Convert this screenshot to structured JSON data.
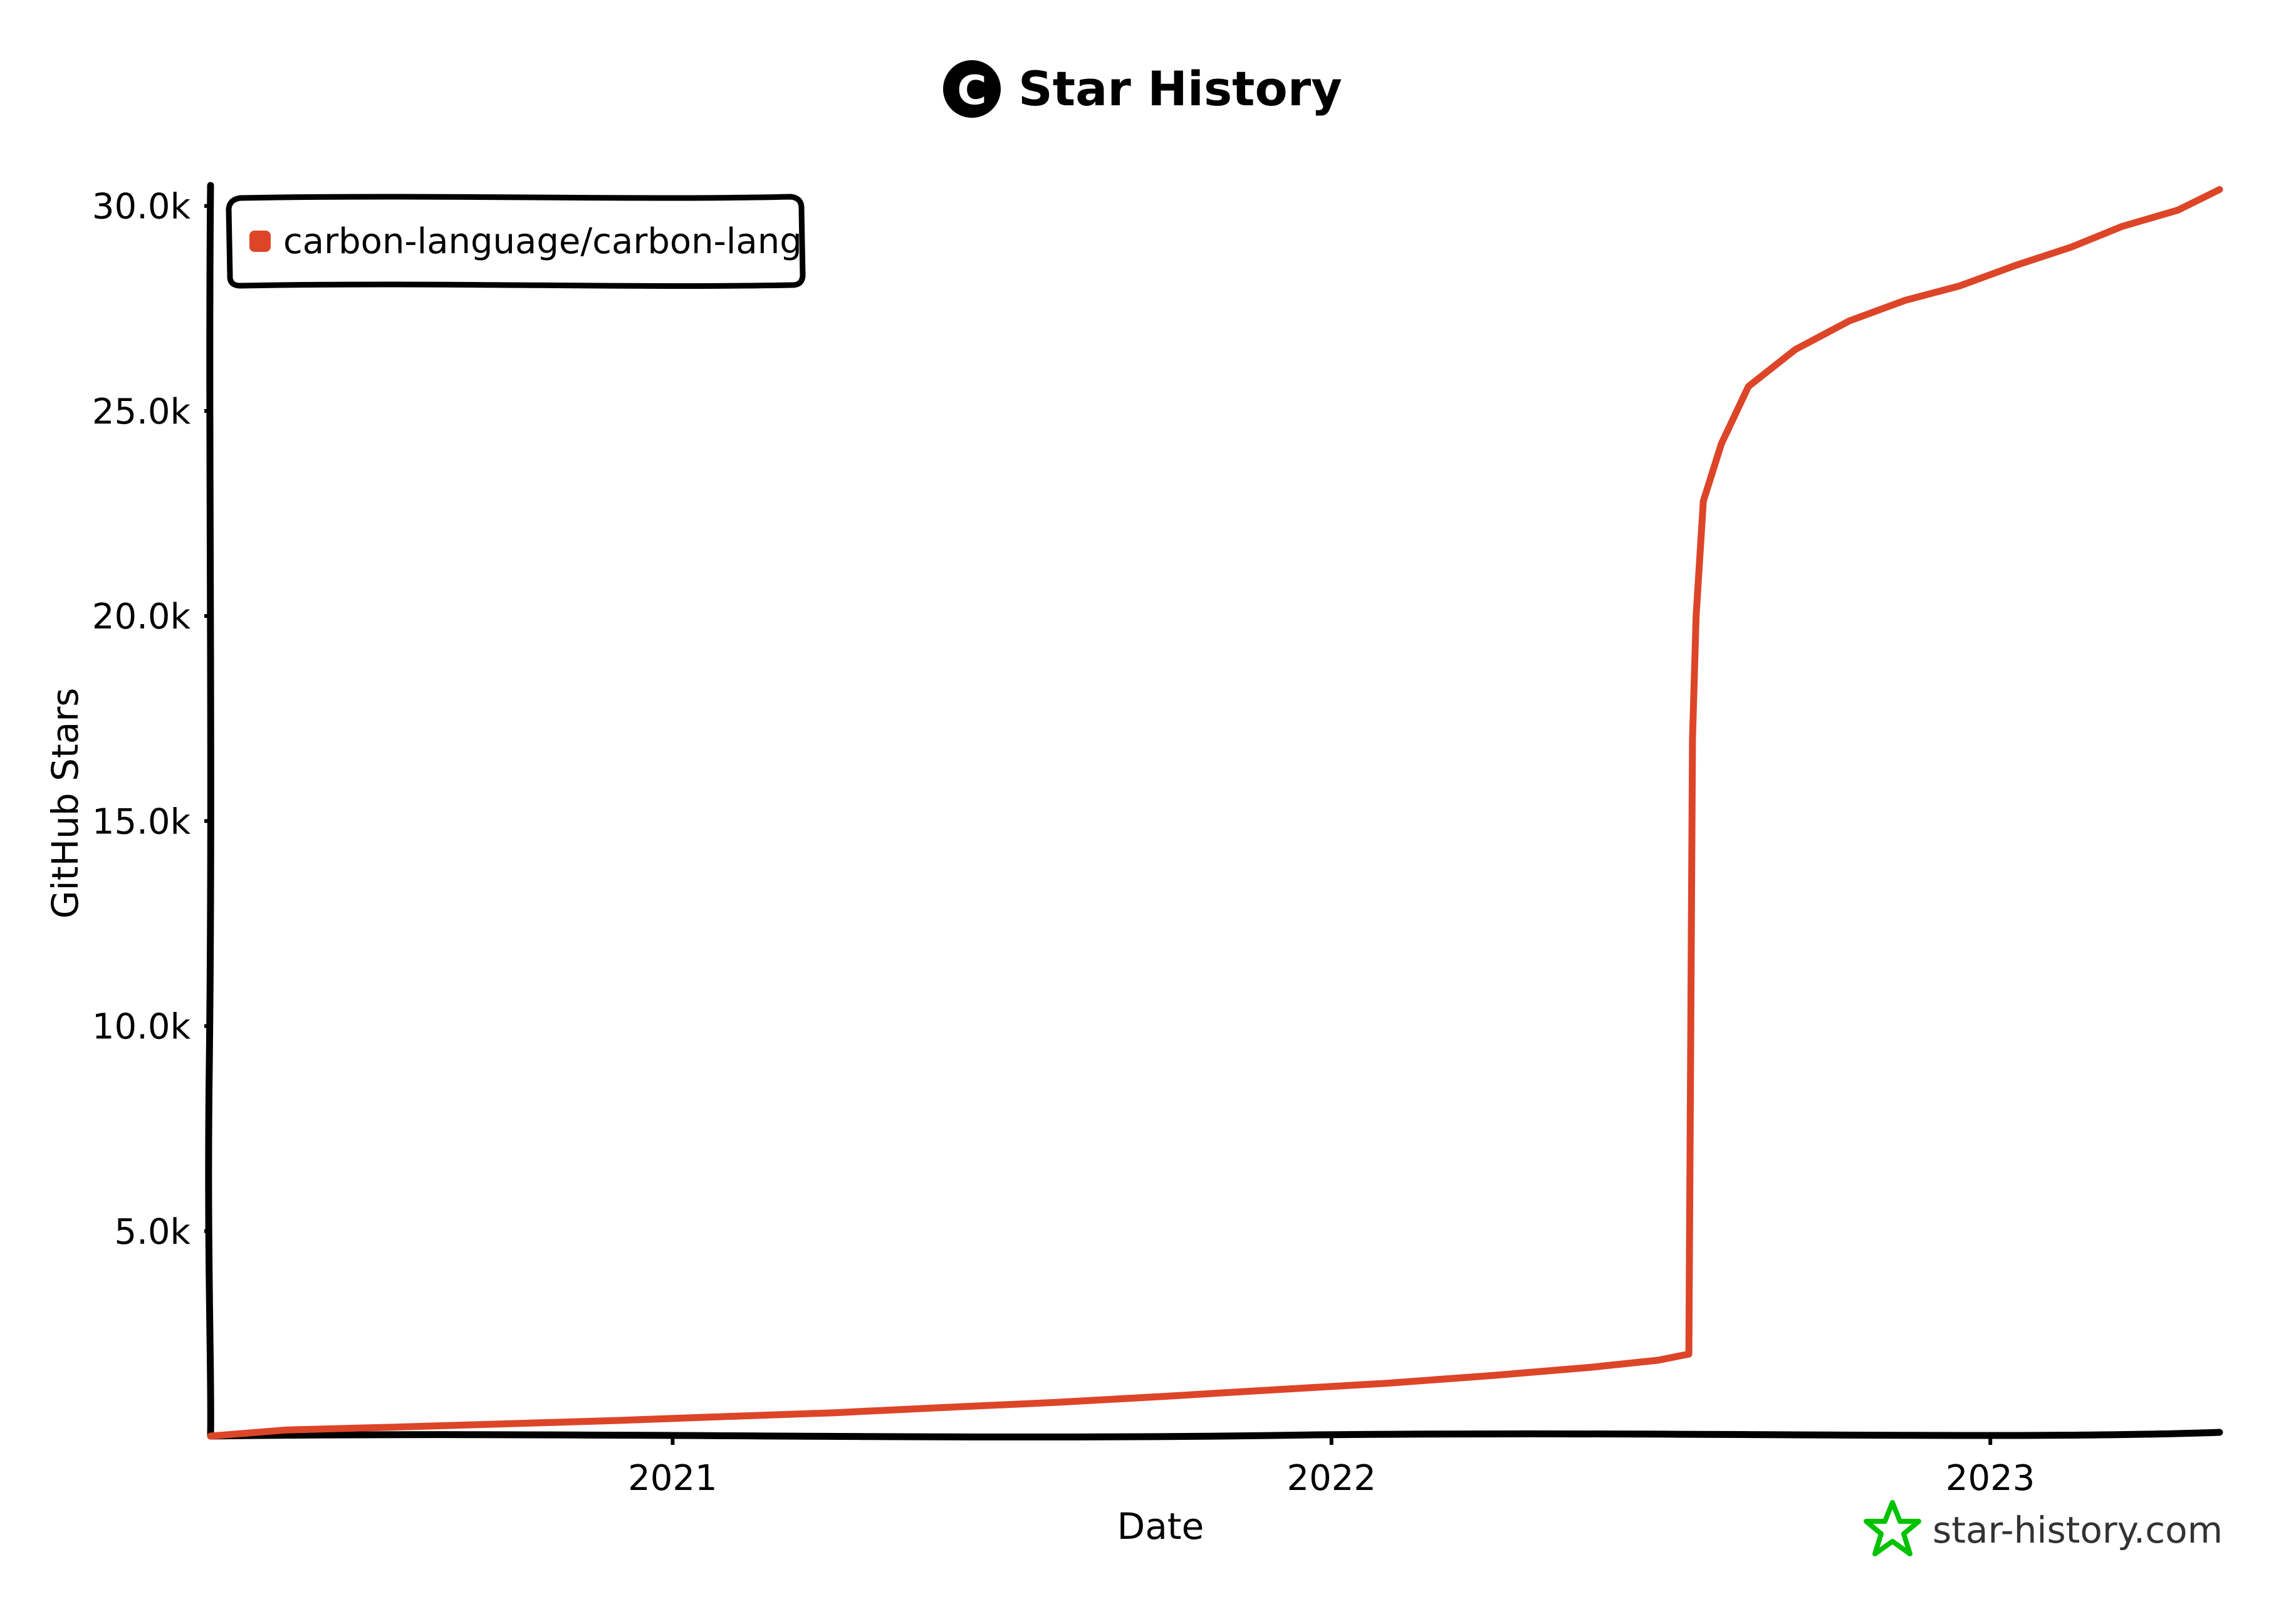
{
  "chart_data": {
    "type": "line",
    "title": "Star History",
    "title_icon_letter": "C",
    "xlabel": "Date",
    "ylabel": "GitHub Stars",
    "x_tick_labels": [
      "2021",
      "2022",
      "2023"
    ],
    "x_ticks": [
      "2021-01-01",
      "2022-01-01",
      "2023-01-01"
    ],
    "xlim": [
      "2020-04-20",
      "2023-05-08"
    ],
    "y_tick_labels": [
      "5.0k",
      "10.0k",
      "15.0k",
      "20.0k",
      "25.0k",
      "30.0k"
    ],
    "y_ticks": [
      5000,
      10000,
      15000,
      20000,
      25000,
      30000
    ],
    "ylim": [
      0,
      30500
    ],
    "grid": false,
    "legend_position": "top-left",
    "series": [
      {
        "name": "carbon-language/carbon-lang",
        "color": "#dd4528",
        "points": [
          {
            "x": "2020-04-20",
            "y": 0
          },
          {
            "x": "2020-06-01",
            "y": 150
          },
          {
            "x": "2020-08-01",
            "y": 220
          },
          {
            "x": "2020-10-01",
            "y": 300
          },
          {
            "x": "2020-12-01",
            "y": 380
          },
          {
            "x": "2021-02-01",
            "y": 480
          },
          {
            "x": "2021-04-01",
            "y": 570
          },
          {
            "x": "2021-06-01",
            "y": 700
          },
          {
            "x": "2021-08-01",
            "y": 820
          },
          {
            "x": "2021-10-01",
            "y": 970
          },
          {
            "x": "2021-12-01",
            "y": 1130
          },
          {
            "x": "2022-02-01",
            "y": 1290
          },
          {
            "x": "2022-04-01",
            "y": 1480
          },
          {
            "x": "2022-05-25",
            "y": 1680
          },
          {
            "x": "2022-07-01",
            "y": 1850
          },
          {
            "x": "2022-07-18",
            "y": 2000
          },
          {
            "x": "2022-07-20",
            "y": 17000
          },
          {
            "x": "2022-07-22",
            "y": 20000
          },
          {
            "x": "2022-07-26",
            "y": 22800
          },
          {
            "x": "2022-08-05",
            "y": 24200
          },
          {
            "x": "2022-08-20",
            "y": 25600
          },
          {
            "x": "2022-09-15",
            "y": 26500
          },
          {
            "x": "2022-10-15",
            "y": 27200
          },
          {
            "x": "2022-11-15",
            "y": 27700
          },
          {
            "x": "2022-12-15",
            "y": 28050
          },
          {
            "x": "2023-01-15",
            "y": 28550
          },
          {
            "x": "2023-02-15",
            "y": 29000
          },
          {
            "x": "2023-03-15",
            "y": 29500
          },
          {
            "x": "2023-04-15",
            "y": 29900
          },
          {
            "x": "2023-05-08",
            "y": 30400
          }
        ]
      }
    ]
  },
  "watermark": {
    "text": "star-history.com",
    "icon": "star-icon",
    "color": "#00c200"
  }
}
